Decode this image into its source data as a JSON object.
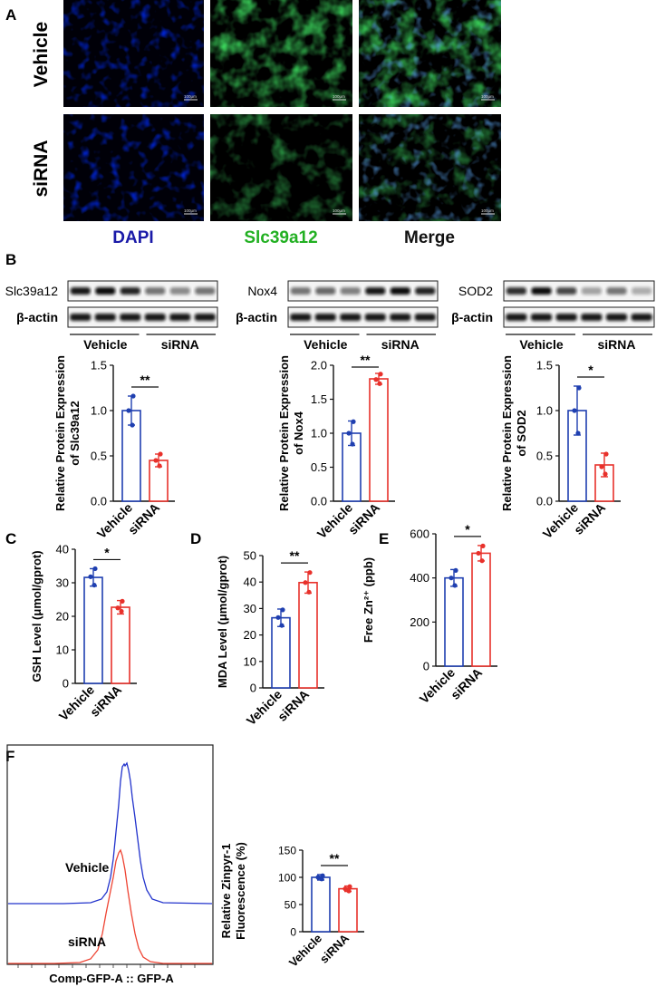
{
  "panel_letters": [
    "A",
    "B",
    "C",
    "D",
    "E",
    "F"
  ],
  "panel_a": {
    "row_labels": [
      "Vehicle",
      "siRNA"
    ],
    "col_labels": [
      "DAPI",
      "Slc39a12",
      "Merge"
    ],
    "col_colors": [
      "#1a1aa8",
      "#22b022",
      "#111111"
    ],
    "scale_bar": "100μm"
  },
  "panel_b": {
    "blots": [
      {
        "label": "Slc39a12"
      },
      {
        "label": "Nox4"
      },
      {
        "label": "SOD2"
      }
    ],
    "loading_label": "β-actin",
    "groups": [
      "Vehicle",
      "siRNA"
    ]
  },
  "colors": {
    "vehicle": "#1f3fb0",
    "sirna": "#e8312b",
    "axis": "#111111"
  },
  "charts": [
    {
      "id": "b1",
      "ylabel": "Relative Protein Expression",
      "ylabel2": "of Slc39a12"
    },
    {
      "id": "b2",
      "ylabel": "Relative Protein Expression",
      "ylabel2": "of Nox4"
    },
    {
      "id": "b3",
      "ylabel": "Relative Protein Expression",
      "ylabel2": "of SOD2"
    },
    {
      "id": "c",
      "ylabel": "GSH Level (μmol/gprot)",
      "ylabel2": ""
    },
    {
      "id": "d",
      "ylabel": "MDA Level (μmol/gprot)",
      "ylabel2": ""
    },
    {
      "id": "e",
      "ylabel": "Free Zn²⁺ (ppb)",
      "ylabel2": ""
    },
    {
      "id": "f",
      "ylabel": "Relative Zinpyr-1",
      "ylabel2": "Fluorescence (%)"
    }
  ],
  "chart_data": [
    {
      "type": "bar",
      "categories": [
        "Vehicle",
        "siRNA"
      ],
      "values": [
        1.0,
        0.45
      ],
      "errors": [
        0.16,
        0.07
      ],
      "points": [
        [
          0.84,
          1.0,
          1.16
        ],
        [
          0.39,
          0.45,
          0.52
        ]
      ],
      "yticks": [
        "0.0",
        "0.5",
        "1.0",
        "1.5"
      ],
      "ylim": [
        0,
        1.5
      ],
      "significance": "**"
    },
    {
      "type": "bar",
      "categories": [
        "Vehicle",
        "siRNA"
      ],
      "values": [
        1.0,
        1.8
      ],
      "errors": [
        0.18,
        0.08
      ],
      "points": [
        [
          0.84,
          1.0,
          1.17
        ],
        [
          1.73,
          1.79,
          1.87
        ]
      ],
      "yticks": [
        "0.0",
        "0.5",
        "1.0",
        "1.5",
        "2.0"
      ],
      "ylim": [
        0,
        2.0
      ],
      "significance": "**"
    },
    {
      "type": "bar",
      "categories": [
        "Vehicle",
        "siRNA"
      ],
      "values": [
        1.0,
        0.4
      ],
      "errors": [
        0.27,
        0.13
      ],
      "points": [
        [
          0.75,
          1.0,
          1.25
        ],
        [
          0.3,
          0.38,
          0.52
        ]
      ],
      "yticks": [
        "0.0",
        "0.5",
        "1.0",
        "1.5"
      ],
      "ylim": [
        0,
        1.5
      ],
      "significance": "*"
    },
    {
      "type": "bar",
      "categories": [
        "Vehicle",
        "siRNA"
      ],
      "values": [
        31.6,
        22.7
      ],
      "errors": [
        2.6,
        2.0
      ],
      "points": [
        [
          29.3,
          31.8,
          34.2
        ],
        [
          21.5,
          22.5,
          24.5
        ]
      ],
      "yticks": [
        "0",
        "10",
        "20",
        "30",
        "40"
      ],
      "ylim": [
        0,
        40
      ],
      "significance": "*"
    },
    {
      "type": "bar",
      "categories": [
        "Vehicle",
        "siRNA"
      ],
      "values": [
        26.5,
        39.8
      ],
      "errors": [
        3.3,
        4.0
      ],
      "points": [
        [
          23.6,
          26.6,
          29.5
        ],
        [
          36.2,
          39.8,
          43.6
        ]
      ],
      "yticks": [
        "0",
        "10",
        "20",
        "30",
        "40",
        "50"
      ],
      "ylim": [
        0,
        50
      ],
      "significance": "**"
    },
    {
      "type": "bar",
      "categories": [
        "Vehicle",
        "siRNA"
      ],
      "values": [
        400,
        512
      ],
      "errors": [
        38,
        35
      ],
      "points": [
        [
          366,
          400,
          434
        ],
        [
          478,
          512,
          545
        ]
      ],
      "yticks": [
        "0",
        "200",
        "400",
        "600"
      ],
      "ylim": [
        0,
        600
      ],
      "significance": "*"
    },
    {
      "type": "bar",
      "categories": [
        "Vehicle",
        "siRNA"
      ],
      "values": [
        100,
        79
      ],
      "errors": [
        5,
        5
      ],
      "points": [
        [
          97,
          100,
          103
        ],
        [
          75,
          79,
          83
        ]
      ],
      "yticks": [
        "0",
        "50",
        "100",
        "150"
      ],
      "ylim": [
        0,
        150
      ],
      "significance": "**"
    }
  ],
  "flow": {
    "xlabel": "Comp-GFP-A :: GFP-A",
    "series": [
      {
        "name": "Vehicle",
        "color": "#2233cc"
      },
      {
        "name": "siRNA",
        "color": "#ee4433"
      }
    ]
  }
}
